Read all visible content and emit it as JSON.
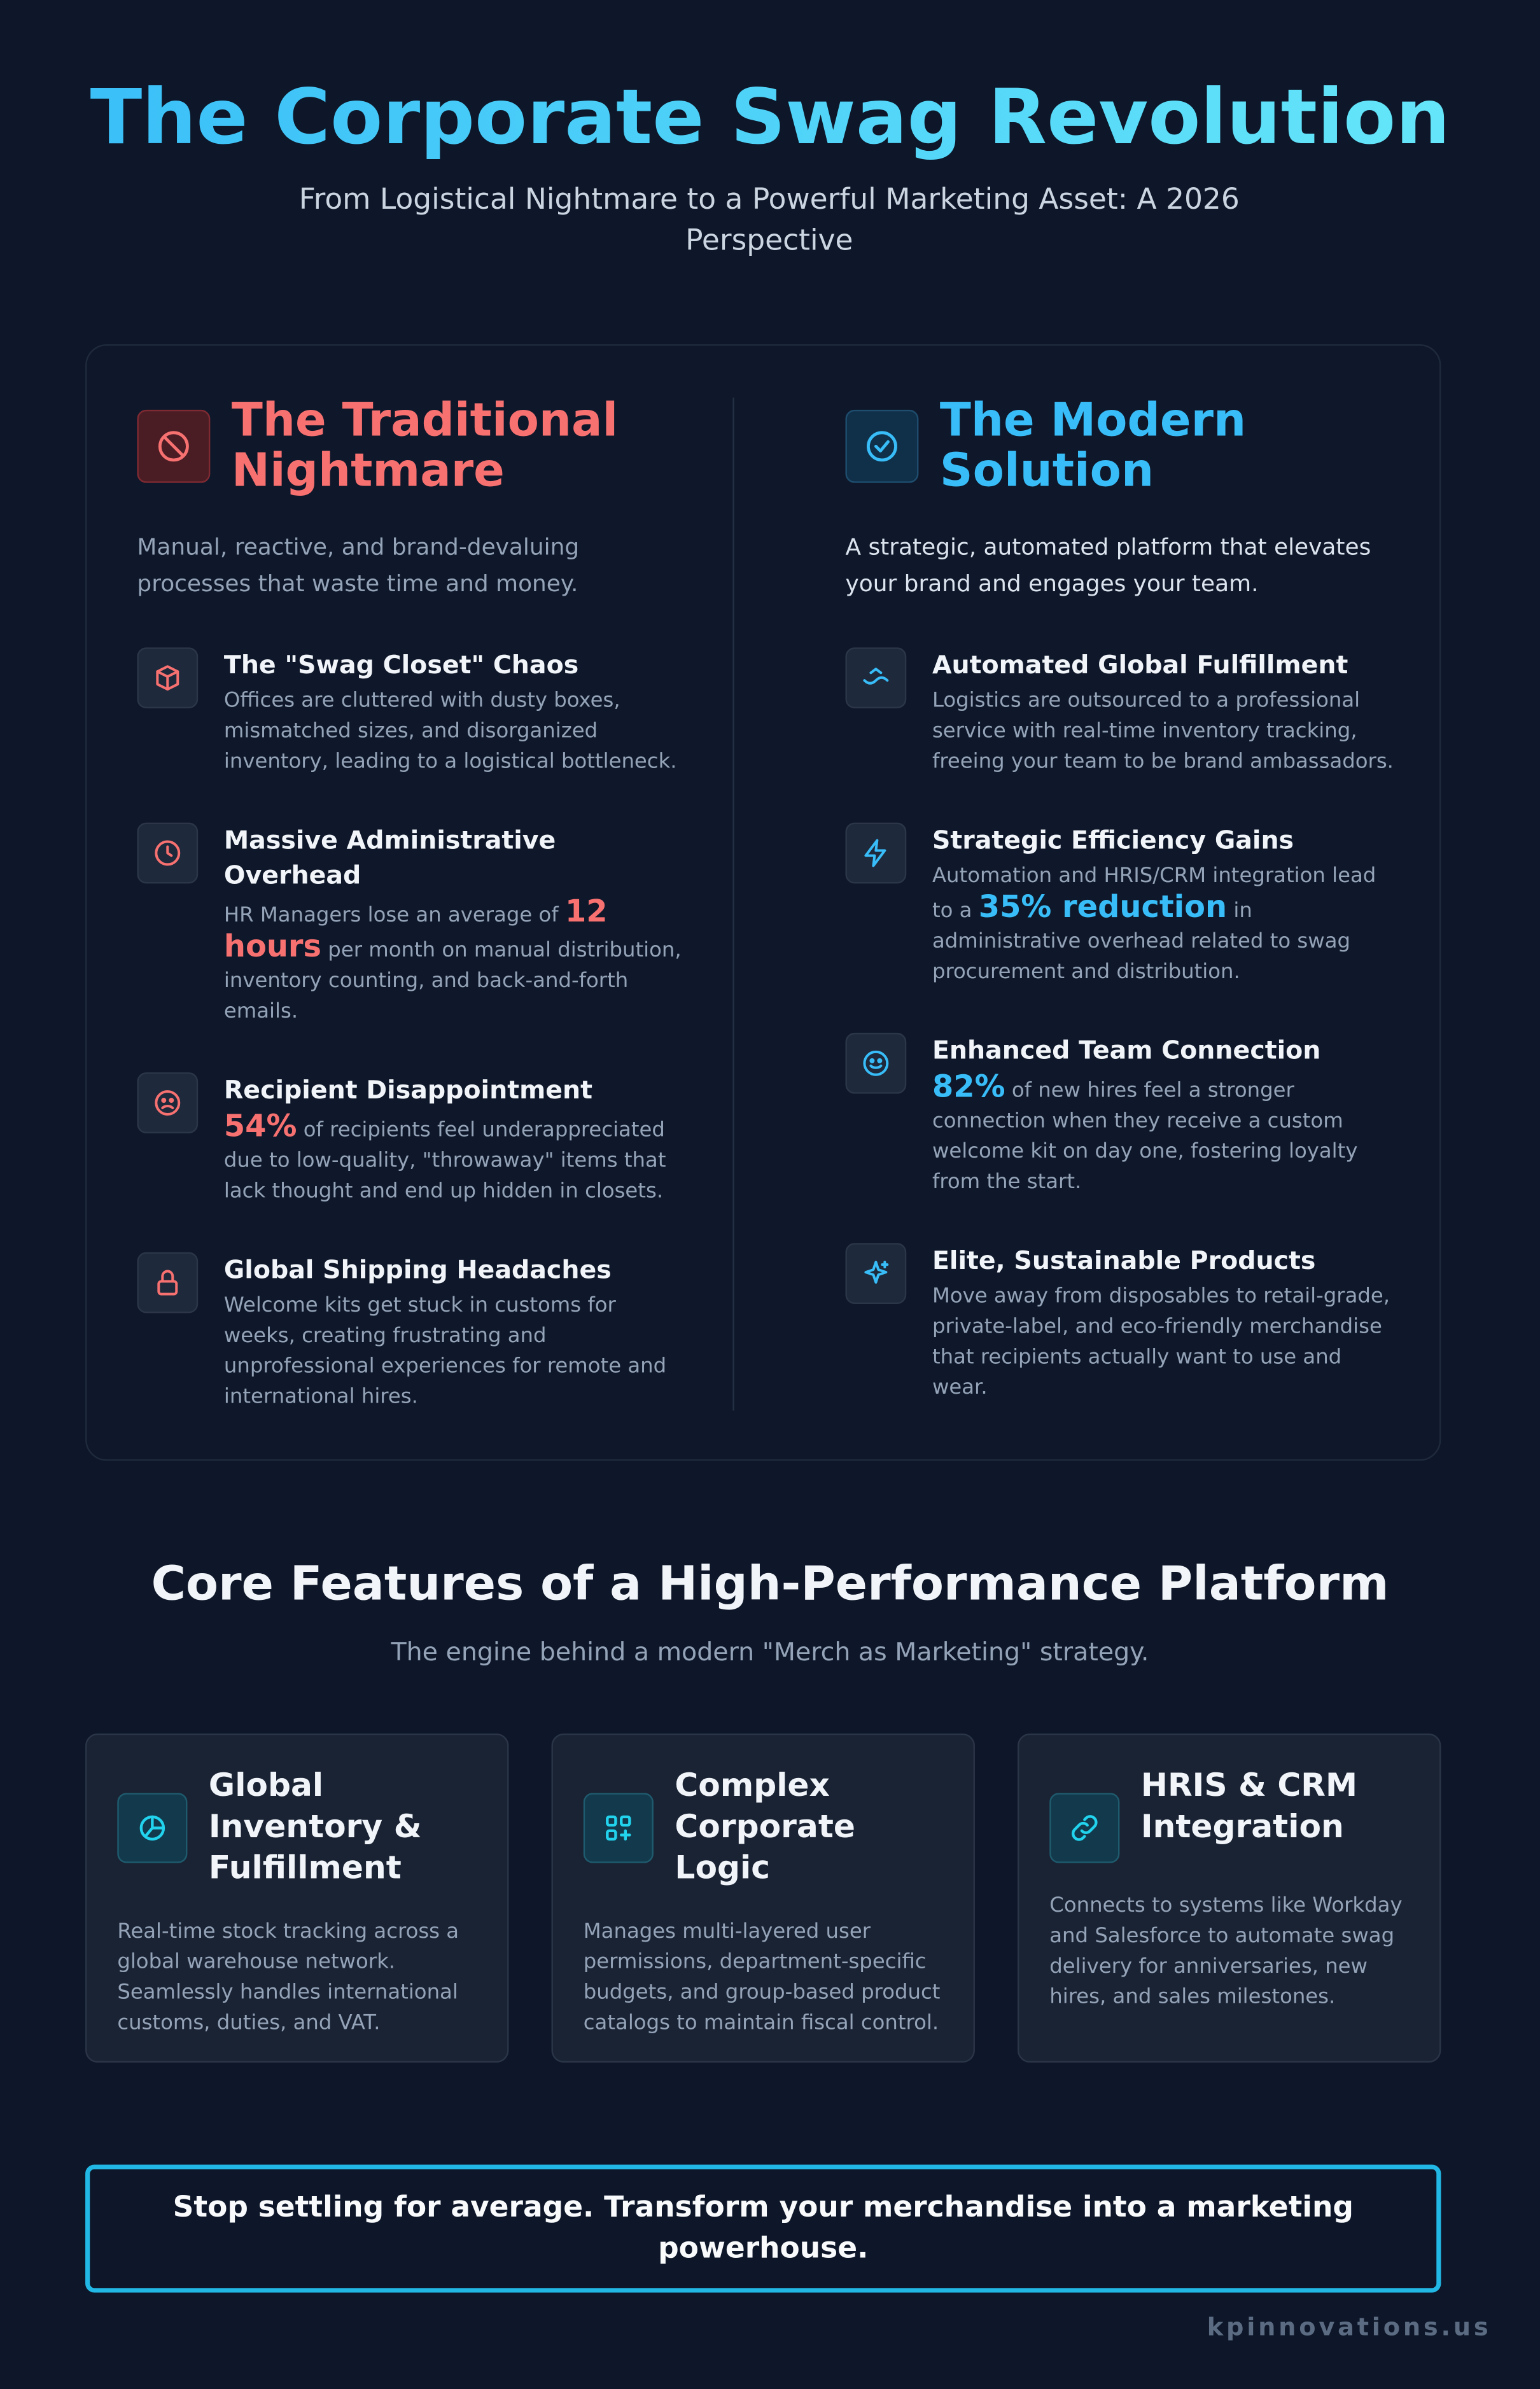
{
  "header": {
    "title": "The Corporate Swag Revolution",
    "subtitle": "From Logistical Nightmare to a Powerful Marketing Asset: A 2026 Perspective"
  },
  "comparison": {
    "left": {
      "title": "The Traditional Nightmare",
      "description": "Manual, reactive, and brand-devaluing processes that waste time and money.",
      "items": [
        {
          "title": "The \"Swag Closet\" Chaos",
          "text": "Offices are cluttered with dusty boxes, mismatched sizes, and disorganized inventory, leading to a logistical bottleneck."
        },
        {
          "title": "Massive Administrative Overhead",
          "text_before": "HR Managers lose an average of ",
          "stat": "12 hours",
          "text_after": " per month on manual distribution, inventory counting, and back-and-forth emails."
        },
        {
          "title": "Recipient Disappointment",
          "stat": "54%",
          "text_after": " of recipients feel underappreciated due to low-quality, \"throwaway\" items that lack thought and end up hidden in closets."
        },
        {
          "title": "Global Shipping Headaches",
          "text": "Welcome kits get stuck in customs for weeks, creating frustrating and unprofessional experiences for remote and international hires."
        }
      ]
    },
    "right": {
      "title": "The Modern Solution",
      "description": "A strategic, automated platform that elevates your brand and engages your team.",
      "items": [
        {
          "title": "Automated Global Fulfillment",
          "text": "Logistics are outsourced to a professional service with real-time inventory tracking, freeing your team to be brand ambassadors."
        },
        {
          "title": "Strategic Efficiency Gains",
          "text_before": "Automation and HRIS/CRM integration lead to a ",
          "stat": "35% reduction",
          "text_after": " in administrative overhead related to swag procurement and distribution."
        },
        {
          "title": "Enhanced Team Connection",
          "stat": "82%",
          "text_after": " of new hires feel a stronger connection when they receive a custom welcome kit on day one, fostering loyalty from the start."
        },
        {
          "title": "Elite, Sustainable Products",
          "text": "Move away from disposables to retail-grade, private-label, and eco-friendly merchandise that recipients actually want to use and wear."
        }
      ]
    }
  },
  "features": {
    "title": "Core Features of a High-Performance Platform",
    "subtitle": "The engine behind a modern \"Merch as Marketing\" strategy.",
    "cards": [
      {
        "title": "Global Inventory & Fulfillment",
        "text": "Real-time stock tracking across a global warehouse network. Seamlessly handles international customs, duties, and VAT."
      },
      {
        "title": "Complex Corporate Logic",
        "text": "Manages multi-layered user permissions, department-specific budgets, and group-based product catalogs to maintain fiscal control."
      },
      {
        "title": "HRIS & CRM Integration",
        "text": "Connects to systems like Workday and Salesforce to automate swag delivery for anniversaries, new hires, and sales milestones."
      }
    ]
  },
  "cta": "Stop settling for average. Transform your merchandise into a marketing powerhouse.",
  "footer": "kpinnovations.us"
}
